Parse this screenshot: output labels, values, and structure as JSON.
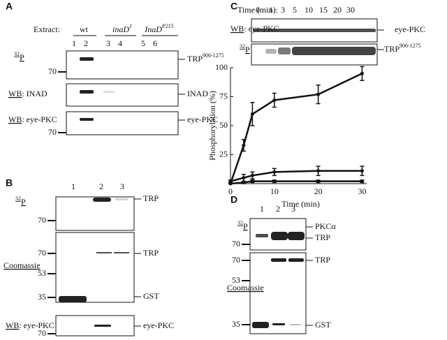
{
  "panel_a": {
    "letter": "A",
    "extract": "Extract:",
    "groups": [
      {
        "text": "wt"
      },
      {
        "text": "inaD",
        "sup": "1"
      },
      {
        "text": "InaD",
        "sup": "P215"
      }
    ],
    "lanes": [
      "1",
      "2",
      "3",
      "4",
      "5",
      "6"
    ],
    "blots": [
      {
        "label": {
          "sup": "32",
          "text": "P"
        },
        "markers": [
          70
        ],
        "targets": [
          {
            "text": "TRP",
            "sup": "906-1275"
          }
        ]
      },
      {
        "label": {
          "underlined": "WB",
          "text": ": INAD"
        },
        "markers": [],
        "targets": [
          {
            "text": "INAD"
          }
        ]
      },
      {
        "label": {
          "underlined": "WB",
          "text": ": eye-PKC"
        },
        "markers": [
          70
        ],
        "targets": [
          {
            "text": "eye-PKC"
          }
        ]
      }
    ]
  },
  "panel_b": {
    "letter": "B",
    "lanes": [
      "1",
      "2",
      "3"
    ],
    "blots": [
      {
        "label": {
          "sup": "32",
          "text": "P"
        },
        "markers": [
          70
        ],
        "targets": [
          {
            "text": "TRP"
          }
        ]
      },
      {
        "label": {
          "underlined": "Coomassie"
        },
        "markers": [
          70,
          53,
          35
        ],
        "targets": [
          {
            "text": "TRP"
          },
          {
            "text": "GST"
          }
        ]
      },
      {
        "label": {
          "underlined": "WB",
          "text": ": eye-PKC"
        },
        "markers": [
          70
        ],
        "targets": [
          {
            "text": "eye-PKC"
          }
        ]
      }
    ]
  },
  "panel_c": {
    "letter": "C",
    "time_label": "Time (min):",
    "times": [
      "0",
      "1",
      "3",
      "5",
      "10",
      "15",
      "20",
      "30"
    ],
    "blots": [
      {
        "label": {
          "underlined": "WB",
          "text": ": eye-PKC"
        },
        "targets": [
          {
            "text": "eye-PKC"
          }
        ]
      },
      {
        "label": {
          "sup": "32",
          "text": "P"
        },
        "targets": [
          {
            "text": "TRP",
            "sup": "906-1275"
          }
        ]
      }
    ]
  },
  "chart_data": {
    "type": "line",
    "xlabel": "Time (min)",
    "ylabel": "Phosphorylation (%)",
    "xlim": [
      0,
      32
    ],
    "ylim": [
      0,
      100
    ],
    "xticks": [
      0,
      10,
      20,
      30
    ],
    "yticks": [
      25,
      50,
      75,
      100
    ],
    "x": [
      0,
      3,
      5,
      10,
      20,
      30
    ],
    "series": [
      {
        "color": "#111111",
        "values": [
          0,
          33,
          60,
          72,
          77,
          95
        ],
        "errors": [
          0,
          5,
          10,
          6,
          8,
          6
        ]
      },
      {
        "color": "#111111",
        "values": [
          2,
          5,
          7,
          10,
          11,
          11
        ],
        "errors": [
          1,
          3,
          3,
          3,
          4,
          4
        ]
      },
      {
        "color": "#111111",
        "values": [
          0,
          1,
          2,
          2,
          2,
          2
        ],
        "errors": [
          0,
          1,
          1,
          1,
          1,
          1
        ]
      }
    ]
  },
  "panel_d": {
    "letter": "D",
    "lanes": [
      "1",
      "2",
      "3"
    ],
    "blots": [
      {
        "label": {
          "sup": "32",
          "text": "P"
        },
        "markers": [
          70
        ],
        "targets": [
          {
            "text": "PKCα"
          },
          {
            "text": "TRP"
          }
        ]
      },
      {
        "label": {
          "underlined": "Coomassie"
        },
        "markers": [
          70,
          53,
          35
        ],
        "targets": [
          {
            "text": "TRP"
          },
          {
            "text": "GST"
          }
        ]
      }
    ]
  }
}
